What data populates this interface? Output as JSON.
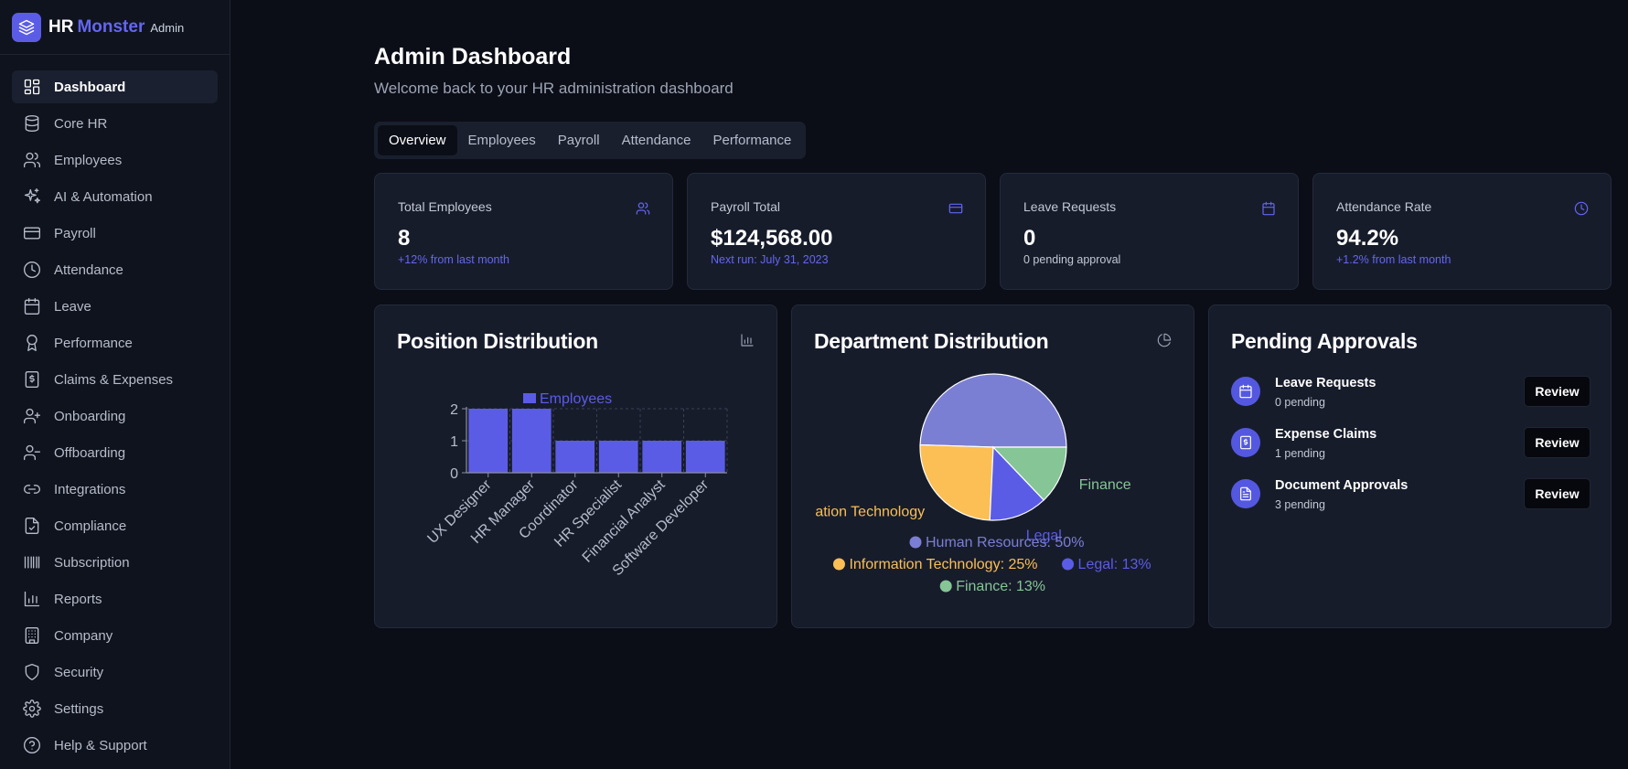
{
  "brand": {
    "name": "HR",
    "accent": "Monster",
    "badge": "Admin",
    "logo_icon": "layers-icon"
  },
  "sidebar": {
    "items": [
      {
        "label": "Dashboard",
        "icon": "dashboard-icon",
        "active": true
      },
      {
        "label": "Core HR",
        "icon": "database-icon"
      },
      {
        "label": "Employees",
        "icon": "users-icon"
      },
      {
        "label": "AI & Automation",
        "icon": "sparkles-icon"
      },
      {
        "label": "Payroll",
        "icon": "credit-card-icon"
      },
      {
        "label": "Attendance",
        "icon": "clock-icon"
      },
      {
        "label": "Leave",
        "icon": "calendar-icon"
      },
      {
        "label": "Performance",
        "icon": "award-icon"
      },
      {
        "label": "Claims & Expenses",
        "icon": "receipt-icon"
      },
      {
        "label": "Onboarding",
        "icon": "user-plus-icon"
      },
      {
        "label": "Offboarding",
        "icon": "user-minus-icon"
      },
      {
        "label": "Integrations",
        "icon": "link-icon"
      },
      {
        "label": "Compliance",
        "icon": "file-check-icon"
      },
      {
        "label": "Subscription",
        "icon": "barcode-icon"
      },
      {
        "label": "Reports",
        "icon": "bar-chart-icon"
      },
      {
        "label": "Company",
        "icon": "building-icon"
      },
      {
        "label": "Security",
        "icon": "shield-icon"
      },
      {
        "label": "Settings",
        "icon": "gear-icon"
      },
      {
        "label": "Help & Support",
        "icon": "help-circle-icon"
      }
    ]
  },
  "header": {
    "title": "Admin Dashboard",
    "subtitle": "Welcome back to your HR administration dashboard"
  },
  "tabs": [
    {
      "label": "Overview",
      "active": true
    },
    {
      "label": "Employees"
    },
    {
      "label": "Payroll"
    },
    {
      "label": "Attendance"
    },
    {
      "label": "Performance"
    }
  ],
  "stats": [
    {
      "label": "Total Employees",
      "value": "8",
      "sub": "+12% from last month",
      "icon": "users-icon"
    },
    {
      "label": "Payroll Total",
      "value": "$124,568.00",
      "sub": "Next run: July 31, 2023",
      "icon": "credit-card-icon"
    },
    {
      "label": "Leave Requests",
      "value": "0",
      "sub": "0 pending approval",
      "icon": "calendar-icon"
    },
    {
      "label": "Attendance Rate",
      "value": "94.2%",
      "sub": "+1.2% from last month",
      "icon": "clock-icon"
    }
  ],
  "panels": {
    "position": {
      "title": "Position Distribution",
      "icon": "bar-chart-icon"
    },
    "department": {
      "title": "Department Distribution",
      "icon": "pie-chart-icon"
    },
    "approvals": {
      "title": "Pending Approvals",
      "items": [
        {
          "name": "Leave Requests",
          "count": "0 pending",
          "button": "Review",
          "icon": "calendar-icon"
        },
        {
          "name": "Expense Claims",
          "count": "1 pending",
          "button": "Review",
          "icon": "receipt-icon"
        },
        {
          "name": "Document Approvals",
          "count": "3 pending",
          "button": "Review",
          "icon": "file-text-icon"
        }
      ]
    }
  },
  "colors": {
    "accent": "#6366f1",
    "bar": "#5b5ce6",
    "pie_hr": "#7b7fd4",
    "pie_it": "#fbbf55",
    "pie_legal": "#5b5ce6",
    "pie_finance": "#86c596"
  },
  "chart_data": [
    {
      "type": "bar",
      "categories": [
        "UX Designer",
        "HR Manager",
        "Coordinator",
        "HR Specialist",
        "Financial Analyst",
        "Software Developer"
      ],
      "series": [
        {
          "name": "Employees",
          "values": [
            2,
            2,
            1,
            1,
            1,
            1
          ]
        }
      ],
      "ylim": [
        0,
        2
      ],
      "yticks": [
        0,
        1,
        2
      ],
      "grid": true,
      "legend": "top"
    },
    {
      "type": "pie",
      "slices": [
        {
          "name": "Human Resources",
          "value": 50,
          "legend": "Human Resources: 50%",
          "outer_label": ""
        },
        {
          "name": "Information Technology",
          "value": 25,
          "legend": "Information Technology: 25%",
          "outer_label": "ation Technology"
        },
        {
          "name": "Legal",
          "value": 13,
          "legend": "Legal: 13%",
          "outer_label": "Legal"
        },
        {
          "name": "Finance",
          "value": 13,
          "legend": "Finance: 13%",
          "outer_label": "Finance"
        }
      ],
      "legend": "bottom"
    }
  ]
}
